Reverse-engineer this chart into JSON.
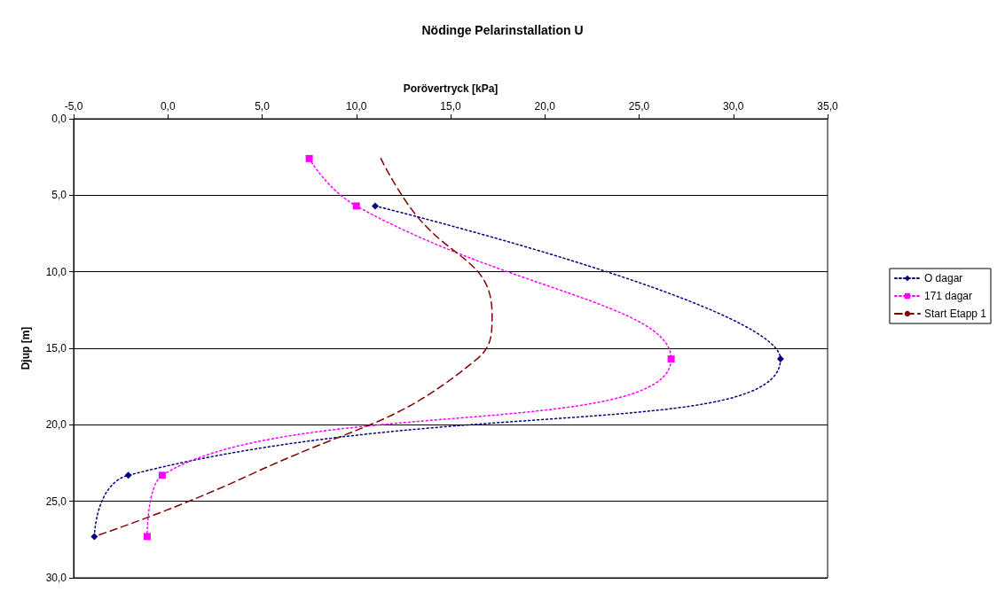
{
  "chart_data": {
    "type": "line",
    "title": "Nödinge Pelarinstallation U",
    "xlabel": "Porövertryck [kPa]",
    "ylabel": "Djup [m]",
    "xlim": [
      -5,
      35
    ],
    "xticks": [
      {
        "value": -5,
        "label": "-5,0"
      },
      {
        "value": 0,
        "label": "0,0"
      },
      {
        "value": 5,
        "label": "5,0"
      },
      {
        "value": 10,
        "label": "10,0"
      },
      {
        "value": 15,
        "label": "15,0"
      },
      {
        "value": 20,
        "label": "20,0"
      },
      {
        "value": 25,
        "label": "25,0"
      },
      {
        "value": 30,
        "label": "30,0"
      },
      {
        "value": 35,
        "label": "35,0"
      }
    ],
    "ylim": [
      30,
      0
    ],
    "yticks": [
      {
        "value": 0,
        "label": "0,0"
      },
      {
        "value": 5,
        "label": "5,0"
      },
      {
        "value": 10,
        "label": "10,0"
      },
      {
        "value": 15,
        "label": "15,0"
      },
      {
        "value": 20,
        "label": "20,0"
      },
      {
        "value": 25,
        "label": "25,0"
      },
      {
        "value": 30,
        "label": "30,0"
      }
    ],
    "grid": "y",
    "legend": "right",
    "series": [
      {
        "name": "O dagar",
        "color": "#000080",
        "marker": "diamond",
        "line_style": "dotted",
        "x": [
          11.0,
          32.5,
          -2.1,
          -3.9
        ],
        "values": [
          5.7,
          15.7,
          23.3,
          27.3
        ]
      },
      {
        "name": "171 dagar",
        "color": "#ff00ff",
        "marker": "square",
        "line_style": "dotted",
        "x": [
          7.5,
          10.0,
          26.7,
          -0.3,
          -1.1
        ],
        "values": [
          2.6,
          5.7,
          15.7,
          23.3,
          27.3
        ]
      },
      {
        "name": "Start Etapp 1",
        "color": "#800000",
        "marker": "none",
        "line_style": "dashed",
        "x": [
          11.3,
          12.8,
          17.2,
          16.4,
          4.3,
          -3.9
        ],
        "values": [
          2.6,
          5.7,
          12.8,
          15.7,
          23.3,
          27.3
        ]
      }
    ]
  }
}
